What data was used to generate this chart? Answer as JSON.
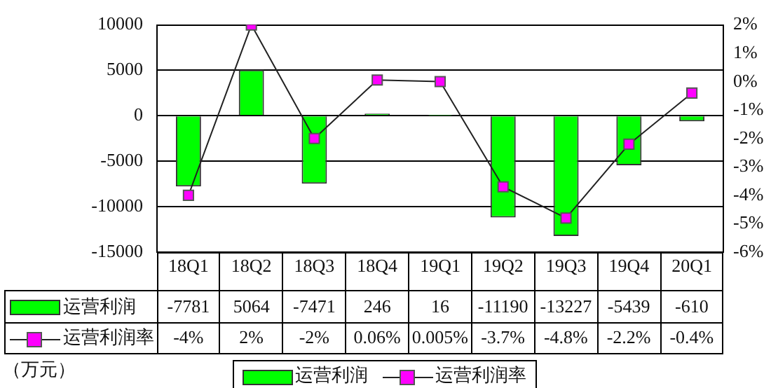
{
  "chart_data": {
    "type": "bar",
    "categories": [
      "18Q1",
      "18Q2",
      "18Q3",
      "18Q4",
      "19Q1",
      "19Q2",
      "19Q3",
      "19Q4",
      "20Q1"
    ],
    "series": [
      {
        "name": "运营利润",
        "color": "#00ff00",
        "values": [
          -7781,
          5064,
          -7471,
          246,
          16,
          -11190,
          -13227,
          -5439,
          -610
        ],
        "value_labels": [
          "-7781",
          "5064",
          "-7471",
          "246",
          "16",
          "-11190",
          "-13227",
          "-5439",
          "-610"
        ]
      },
      {
        "name": "运营利润率",
        "type": "line",
        "axis": "y2",
        "color": "#ff00ff",
        "values": [
          -4,
          2,
          -2,
          0.06,
          0.005,
          -3.7,
          -4.8,
          -2.2,
          -0.4
        ],
        "value_labels": [
          "-4%",
          "2%",
          "-2%",
          "0.06%",
          "0.005%",
          "-3.7%",
          "-4.8%",
          "-2.2%",
          "-0.4%"
        ]
      }
    ],
    "ylabel": "（万元）",
    "ylim": [
      -15000,
      10000
    ],
    "yticks": [
      -15000,
      -10000,
      -5000,
      0,
      5000,
      10000
    ],
    "y2lim": [
      -6,
      2
    ],
    "y2ticks": [
      {
        "value": -6,
        "label": "-6%"
      },
      {
        "value": -5,
        "label": "-5%"
      },
      {
        "value": -4,
        "label": "-4%"
      },
      {
        "value": -3,
        "label": "-3%"
      },
      {
        "value": -2,
        "label": "-2%"
      },
      {
        "value": -1,
        "label": "-1%"
      },
      {
        "value": 0,
        "label": "0%"
      },
      {
        "value": 1,
        "label": "1%"
      },
      {
        "value": 2,
        "label": "2%"
      }
    ],
    "grid": "y",
    "legend": "bottom",
    "marker": "square",
    "line_style": "solid"
  }
}
